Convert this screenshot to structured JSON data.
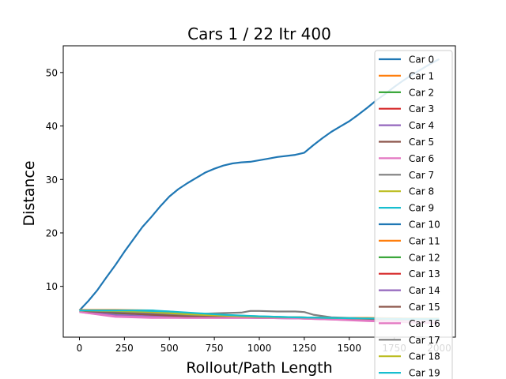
{
  "chart_data": {
    "type": "line",
    "title": "Cars 1 / 22 Itr 400",
    "xlabel": "Rollout/Path Length",
    "ylabel": "Distance",
    "xlim": [
      -90,
      2090
    ],
    "ylim": [
      0.5,
      55
    ],
    "xticks": [
      0,
      250,
      500,
      750,
      1000,
      1250,
      1500,
      1750,
      2000
    ],
    "yticks": [
      10,
      20,
      30,
      40,
      50
    ],
    "grid": false,
    "legend": "right",
    "series": [
      {
        "name": "Car 0",
        "color": "#1f77b4",
        "x": [
          0,
          50,
          100,
          150,
          200,
          250,
          300,
          350,
          400,
          450,
          500,
          550,
          600,
          650,
          700,
          750,
          800,
          850,
          900,
          950,
          1000,
          1050,
          1100,
          1150,
          1200,
          1250,
          1300,
          1350,
          1400,
          1450,
          1500,
          1550,
          1600,
          1650,
          1700,
          1750,
          1800,
          1850,
          1900,
          1950,
          2000
        ],
        "y": [
          5.5,
          7.3,
          9.3,
          11.7,
          14.0,
          16.5,
          18.8,
          21.1,
          23.0,
          25.0,
          26.8,
          28.2,
          29.3,
          30.3,
          31.3,
          32.0,
          32.6,
          33.0,
          33.2,
          33.3,
          33.6,
          33.9,
          34.2,
          34.4,
          34.6,
          35.0,
          36.4,
          37.7,
          38.9,
          39.9,
          40.9,
          42.1,
          43.4,
          44.8,
          46.0,
          47.3,
          48.5,
          49.6,
          50.6,
          51.6,
          52.5
        ]
      },
      {
        "name": "Car 1",
        "color": "#ff7f0e",
        "x": [
          0,
          200,
          400,
          600,
          800,
          1000,
          1200,
          1400,
          1600,
          1800,
          2000
        ],
        "y": [
          5.6,
          5.6,
          5.5,
          4.8,
          4.4,
          4.3,
          4.2,
          4.1,
          4.1,
          4.0,
          4.0
        ]
      },
      {
        "name": "Car 2",
        "color": "#2ca02c",
        "x": [
          0,
          200,
          400,
          600,
          800,
          1000,
          1200,
          1400,
          1600,
          1800,
          2000
        ],
        "y": [
          5.4,
          5.1,
          4.8,
          4.5,
          4.3,
          4.2,
          4.1,
          4.0,
          3.9,
          3.9,
          3.8
        ]
      },
      {
        "name": "Car 3",
        "color": "#d62728",
        "x": [
          0,
          200,
          400,
          600,
          800,
          1000,
          1200,
          1400,
          1600,
          1800,
          2000
        ],
        "y": [
          5.5,
          5.3,
          5.0,
          4.6,
          4.4,
          4.2,
          4.1,
          4.0,
          3.9,
          3.8,
          3.8
        ]
      },
      {
        "name": "Car 4",
        "color": "#9467bd",
        "x": [
          0,
          200,
          400,
          600,
          800,
          1000,
          1200,
          1400,
          1600,
          1800,
          2000
        ],
        "y": [
          5.3,
          4.6,
          4.3,
          4.2,
          4.2,
          4.1,
          4.1,
          4.0,
          3.9,
          3.8,
          3.7
        ]
      },
      {
        "name": "Car 5",
        "color": "#8c564b",
        "x": [
          0,
          200,
          400,
          600,
          800,
          1000,
          1200,
          1400,
          1600,
          1800,
          2000
        ],
        "y": [
          5.4,
          5.0,
          4.6,
          4.4,
          4.3,
          4.2,
          4.1,
          4.0,
          3.9,
          3.8,
          3.8
        ]
      },
      {
        "name": "Car 6",
        "color": "#e377c2",
        "x": [
          0,
          200,
          400,
          600,
          800,
          1000,
          1200,
          1400,
          1600,
          1800,
          2000
        ],
        "y": [
          5.2,
          4.3,
          4.1,
          4.1,
          4.1,
          4.1,
          4.0,
          3.8,
          3.5,
          3.3,
          3.1
        ]
      },
      {
        "name": "Car 7",
        "color": "#7f7f7f",
        "x": [
          0,
          200,
          400,
          600,
          700,
          800,
          900,
          950,
          1000,
          1100,
          1200,
          1250,
          1300,
          1400,
          1600,
          1800,
          2000
        ],
        "y": [
          5.5,
          5.3,
          5.1,
          4.9,
          4.9,
          5.0,
          5.1,
          5.4,
          5.4,
          5.3,
          5.3,
          5.2,
          4.7,
          4.2,
          4.0,
          3.9,
          3.8
        ]
      },
      {
        "name": "Car 8",
        "color": "#bcbd22",
        "x": [
          0,
          200,
          400,
          600,
          800,
          1000,
          1200,
          1400,
          1600,
          1800,
          2000
        ],
        "y": [
          5.5,
          5.4,
          5.1,
          4.7,
          4.4,
          4.3,
          4.2,
          4.1,
          4.0,
          3.9,
          3.9
        ]
      },
      {
        "name": "Car 9",
        "color": "#17becf",
        "x": [
          0,
          200,
          400,
          500,
          600,
          800,
          1000,
          1200,
          1400,
          1600,
          1800,
          2000
        ],
        "y": [
          5.5,
          5.5,
          5.5,
          5.3,
          5.0,
          4.6,
          4.4,
          4.2,
          4.1,
          4.0,
          3.9,
          3.9
        ]
      },
      {
        "name": "Car 10",
        "color": "#1f77b4",
        "x": [
          0,
          200,
          400,
          600,
          800,
          1000,
          1200,
          1400,
          1600,
          1800,
          2000
        ],
        "y": [
          5.4,
          5.0,
          4.6,
          4.4,
          4.3,
          4.2,
          4.1,
          4.0,
          3.9,
          3.9,
          3.8
        ]
      },
      {
        "name": "Car 11",
        "color": "#ff7f0e",
        "x": [
          0,
          200,
          400,
          600,
          800,
          1000,
          1200,
          1400,
          1600,
          1800,
          2000
        ],
        "y": [
          5.5,
          5.3,
          4.9,
          4.5,
          4.3,
          4.2,
          4.1,
          4.0,
          3.9,
          3.9,
          3.8
        ]
      },
      {
        "name": "Car 12",
        "color": "#2ca02c",
        "x": [
          0,
          200,
          400,
          600,
          800,
          1000,
          1200,
          1400,
          1600,
          1800,
          2000
        ],
        "y": [
          5.4,
          4.9,
          4.5,
          4.3,
          4.2,
          4.2,
          4.1,
          4.0,
          3.9,
          3.8,
          3.8
        ]
      },
      {
        "name": "Car 13",
        "color": "#d62728",
        "x": [
          0,
          200,
          400,
          600,
          800,
          1000,
          1200,
          1400,
          1600,
          1800,
          2000
        ],
        "y": [
          5.5,
          5.2,
          4.8,
          4.5,
          4.3,
          4.2,
          4.1,
          4.0,
          3.9,
          3.9,
          3.8
        ]
      },
      {
        "name": "Car 14",
        "color": "#9467bd",
        "x": [
          0,
          200,
          400,
          600,
          800,
          1000,
          1200,
          1400,
          1600,
          1800,
          2000
        ],
        "y": [
          5.3,
          4.7,
          4.4,
          4.2,
          4.2,
          4.1,
          4.0,
          4.0,
          3.9,
          3.8,
          3.7
        ]
      },
      {
        "name": "Car 15",
        "color": "#8c564b",
        "x": [
          0,
          200,
          400,
          600,
          800,
          1000,
          1200,
          1400,
          1600,
          1800,
          2000
        ],
        "y": [
          5.4,
          5.1,
          4.7,
          4.4,
          4.3,
          4.2,
          4.1,
          4.0,
          3.9,
          3.9,
          3.8
        ]
      },
      {
        "name": "Car 16",
        "color": "#e377c2",
        "x": [
          0,
          200,
          400,
          600,
          800,
          1000,
          1200,
          1400,
          1600,
          1800,
          2000
        ],
        "y": [
          5.2,
          4.4,
          4.2,
          4.1,
          4.1,
          4.1,
          4.0,
          3.8,
          3.6,
          3.4,
          3.2
        ]
      },
      {
        "name": "Car 17",
        "color": "#7f7f7f",
        "x": [
          0,
          200,
          400,
          600,
          800,
          1000,
          1200,
          1400,
          1600,
          1800,
          2000
        ],
        "y": [
          5.5,
          5.3,
          5.0,
          4.7,
          4.5,
          4.3,
          4.2,
          4.1,
          4.0,
          3.9,
          3.9
        ]
      },
      {
        "name": "Car 18",
        "color": "#bcbd22",
        "x": [
          0,
          200,
          400,
          600,
          800,
          1000,
          1200,
          1400,
          1600,
          1800,
          2000
        ],
        "y": [
          5.5,
          5.4,
          5.2,
          4.8,
          4.5,
          4.3,
          4.2,
          4.1,
          4.0,
          3.9,
          3.9
        ]
      },
      {
        "name": "Car 19",
        "color": "#17becf",
        "x": [
          0,
          200,
          300,
          400,
          500,
          600,
          800,
          1000,
          1200,
          1400,
          1600,
          1800,
          2000
        ],
        "y": [
          5.5,
          5.5,
          5.5,
          5.4,
          5.3,
          5.1,
          4.7,
          4.4,
          4.2,
          4.1,
          4.0,
          3.9,
          3.9
        ]
      }
    ]
  }
}
